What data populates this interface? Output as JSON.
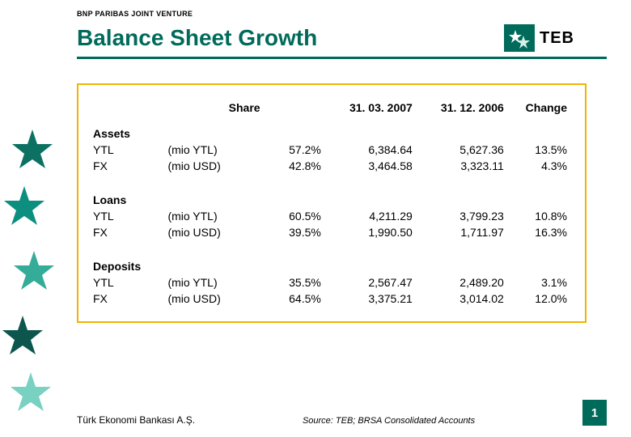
{
  "header": {
    "venture_label": "BNP PARIBAS JOINT VENTURE",
    "title": "Balance Sheet Growth",
    "title_color": "#006a5b",
    "logo_text": "TEB",
    "logo_bg": "#006a5b",
    "underline_color": "#006a5b"
  },
  "table": {
    "border_color": "#f0b400",
    "columns": {
      "share": "Share",
      "date1": "31. 03. 2007",
      "date2": "31. 12. 2006",
      "change": "Change"
    },
    "sections": [
      {
        "title": "Assets",
        "rows": [
          {
            "label": "YTL",
            "share": "(mio YTL)",
            "sharepct": "57.2%",
            "d1": "6,384.64",
            "d2": "5,627.36",
            "change": "13.5%"
          },
          {
            "label": "FX",
            "share": "(mio USD)",
            "sharepct": "42.8%",
            "d1": "3,464.58",
            "d2": "3,323.11",
            "change": "4.3%"
          }
        ]
      },
      {
        "title": "Loans",
        "rows": [
          {
            "label": "YTL",
            "share": "(mio YTL)",
            "sharepct": "60.5%",
            "d1": "4,211.29",
            "d2": "3,799.23",
            "change": "10.8%"
          },
          {
            "label": "FX",
            "share": "(mio USD)",
            "sharepct": "39.5%",
            "d1": "1,990.50",
            "d2": "1,711.97",
            "change": "16.3%"
          }
        ]
      },
      {
        "title": "Deposits",
        "rows": [
          {
            "label": "YTL",
            "share": "(mio YTL)",
            "sharepct": "35.5%",
            "d1": "2,567.47",
            "d2": "2,489.20",
            "change": "3.1%"
          },
          {
            "label": "FX",
            "share": "(mio USD)",
            "sharepct": "64.5%",
            "d1": "3,375.21",
            "d2": "3,014.02",
            "change": "12.0%"
          }
        ]
      }
    ]
  },
  "footer": {
    "company": "Türk Ekonomi Bankası A.Ş.",
    "source": "Source: TEB; BRSA Consolidated Accounts",
    "pagenum": "1",
    "pagenum_bg": "#006a5b"
  },
  "decor": {
    "colors": [
      "#004d44",
      "#006a5b",
      "#008a78",
      "#2aa893",
      "#4fc4ae",
      "#ffffff"
    ]
  }
}
